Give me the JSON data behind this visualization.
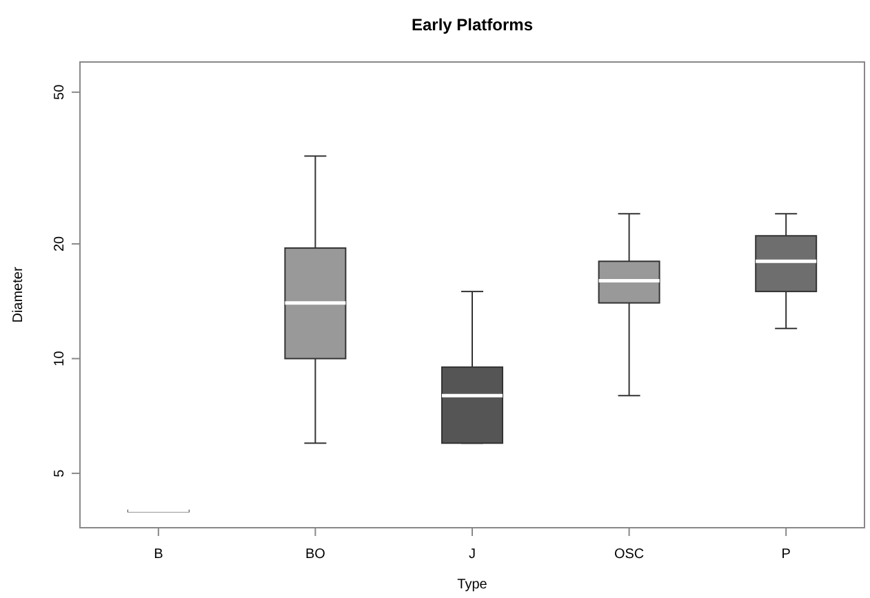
{
  "chart_data": {
    "type": "box",
    "title": "Early Platforms",
    "xlabel": "Type",
    "ylabel": "Diameter",
    "categories": [
      "B",
      "BO",
      "J",
      "OSC",
      "P"
    ],
    "boxes": [
      {
        "low": 4,
        "q1": 4,
        "median": 4,
        "q3": 4,
        "high": 4
      },
      {
        "low": 6,
        "q1": 10,
        "median": 14,
        "q3": 19.5,
        "high": 34
      },
      {
        "low": 6,
        "q1": 6,
        "median": 8,
        "q3": 9.5,
        "high": 15
      },
      {
        "low": 8,
        "q1": 14,
        "median": 16,
        "q3": 18,
        "high": 24
      },
      {
        "low": 12,
        "q1": 15,
        "median": 18,
        "q3": 21,
        "high": 24
      }
    ],
    "colors": [
      "#999999",
      "#999999",
      "#555555",
      "#999999",
      "#6e6e6e"
    ],
    "log": true,
    "ylim": [
      3.6,
      60
    ],
    "yticks": [
      5,
      10,
      20,
      50
    ],
    "grid": false
  }
}
